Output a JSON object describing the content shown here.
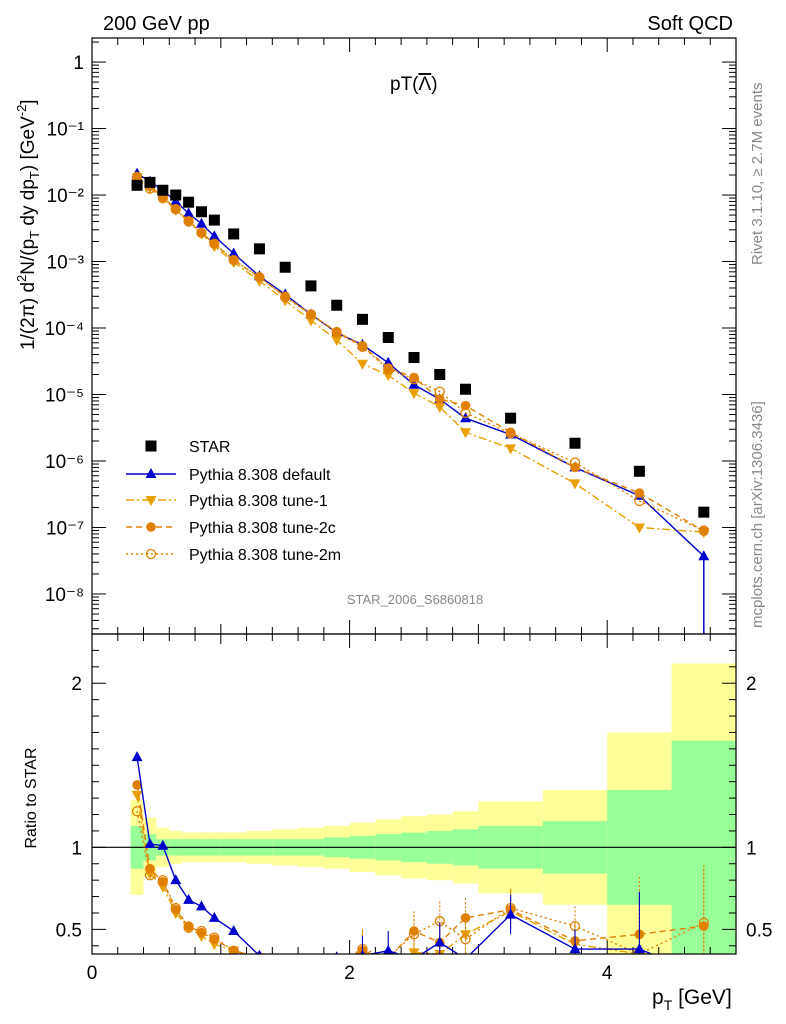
{
  "header": {
    "left": "200 GeV pp",
    "right": "Soft QCD"
  },
  "side_text": {
    "rivet": "Rivet 3.1.10, ≥ 2.7M events",
    "mcplots": "mcplots.cern.ch [arXiv:1306.3436]"
  },
  "watermark": "STAR_2006_S6860818",
  "colors": {
    "star": "#000000",
    "default": "#0000cc",
    "orange": "#e8a000",
    "orange_dark": "#e08000",
    "band_inner": "#99ff99",
    "band_outer": "#ffff99"
  },
  "chart_data": [
    {
      "type": "scatter",
      "title": "pT(Λ̅)",
      "xlabel": "p_T [GeV]",
      "ylabel": "1/(2π) d²N/(p_T dy dp_T) [GeV⁻²]",
      "yscale": "log",
      "xlim": [
        0,
        5
      ],
      "ylim": [
        2.5e-09,
        2.3
      ],
      "x_ticks": [
        "0",
        "2",
        "4"
      ],
      "y_ticks": [
        "1",
        "10⁻¹",
        "10⁻²",
        "10⁻³",
        "10⁻⁴",
        "10⁻⁵",
        "10⁻⁶",
        "10⁻⁷",
        "10⁻⁸"
      ],
      "legend_position": "bottom-left",
      "x": [
        0.35,
        0.45,
        0.55,
        0.65,
        0.75,
        0.85,
        0.95,
        1.1,
        1.3,
        1.5,
        1.7,
        1.9,
        2.1,
        2.3,
        2.5,
        2.7,
        2.9,
        3.25,
        3.75,
        4.25,
        4.75
      ],
      "series": [
        {
          "name": "STAR",
          "marker": "square",
          "values": [
            0.014,
            0.0155,
            0.0118,
            0.01,
            0.0078,
            0.0056,
            0.0042,
            0.0026,
            0.00155,
            0.00082,
            0.00043,
            0.00022,
            0.000135,
            7.2e-05,
            3.6e-05,
            2e-05,
            1.2e-05,
            4.4e-06,
            1.85e-06,
            7e-07,
            1.7e-07
          ]
        },
        {
          "name": "Pythia 8.308 default",
          "marker": "triangle-up",
          "values": [
            0.021,
            0.016,
            0.0118,
            0.008,
            0.0053,
            0.0037,
            0.0024,
            0.00132,
            0.0006,
            0.00032,
            0.00016,
            8.5e-05,
            5.6e-05,
            3e-05,
            1.4e-05,
            8.5e-06,
            4.4e-06,
            2.5e-06,
            8e-07,
            3e-07,
            3.7e-08
          ]
        },
        {
          "name": "Pythia 8.308 tune-1",
          "marker": "triangle-down",
          "values": [
            0.0185,
            0.013,
            0.009,
            0.006,
            0.004,
            0.0026,
            0.0017,
            0.00098,
            0.00051,
            0.00026,
            0.00013,
            6.6e-05,
            2.9e-05,
            1.95e-05,
            1.05e-05,
            6.5e-06,
            2.7e-06,
            1.55e-06,
            4.6e-07,
            1e-07,
            8.5e-08
          ]
        },
        {
          "name": "Pythia 8.308 tune-2c",
          "marker": "circle",
          "values": [
            0.019,
            0.0135,
            0.0093,
            0.0062,
            0.0041,
            0.0027,
            0.00185,
            0.00105,
            0.00058,
            0.0003,
            0.00016,
            8.8e-05,
            5.4e-05,
            2.5e-05,
            1.8e-05,
            8.5e-06,
            6.8e-06,
            2.7e-06,
            8e-07,
            3.3e-07,
            8.8e-08
          ]
        },
        {
          "name": "Pythia 8.308 tune-2m",
          "marker": "open-circle",
          "values": [
            0.017,
            0.0125,
            0.009,
            0.0061,
            0.004,
            0.0027,
            0.00185,
            0.00105,
            0.00058,
            0.00029,
            0.00016,
            8.5e-05,
            5.2e-05,
            2.4e-05,
            1.7e-05,
            1.1e-05,
            5.3e-06,
            2.6e-06,
            9.5e-07,
            2.5e-07,
            9e-08
          ]
        }
      ]
    },
    {
      "type": "line",
      "ylabel": "Ratio to STAR",
      "xlabel": "p_T [GeV]",
      "xlim": [
        0,
        5
      ],
      "ylim": [
        0.35,
        2.3
      ],
      "x_ticks": [
        "0",
        "2",
        "4"
      ],
      "y_ticks": [
        "0.5",
        "1",
        "2"
      ],
      "bands": {
        "x_edges": [
          0.3,
          0.4,
          0.5,
          0.6,
          0.7,
          0.8,
          0.9,
          1.0,
          1.2,
          1.4,
          1.6,
          1.8,
          2.0,
          2.2,
          2.4,
          2.6,
          2.8,
          3.0,
          3.5,
          4.0,
          4.5,
          5.0
        ],
        "inner": [
          0.13,
          0.08,
          0.05,
          0.05,
          0.05,
          0.05,
          0.05,
          0.05,
          0.05,
          0.05,
          0.05,
          0.06,
          0.07,
          0.08,
          0.09,
          0.1,
          0.11,
          0.13,
          0.16,
          0.35,
          0.65
        ],
        "outer": [
          0.29,
          0.18,
          0.12,
          0.1,
          0.09,
          0.09,
          0.09,
          0.09,
          0.1,
          0.11,
          0.12,
          0.13,
          0.15,
          0.17,
          0.19,
          0.2,
          0.22,
          0.28,
          0.35,
          0.7,
          1.12
        ]
      },
      "x": [
        0.35,
        0.45,
        0.55,
        0.65,
        0.75,
        0.85,
        0.95,
        1.1,
        1.3,
        1.5,
        1.7,
        1.9,
        2.1,
        2.3,
        2.5,
        2.7,
        2.9,
        3.25,
        3.75,
        4.25,
        4.75
      ],
      "series": [
        {
          "name": "Pythia 8.308 default",
          "values": [
            1.55,
            1.02,
            1.01,
            0.8,
            0.68,
            0.64,
            0.57,
            0.49,
            0.34,
            0.3,
            0.31,
            0.33,
            0.34,
            0.37,
            0.32,
            0.42,
            0.32,
            0.59,
            0.38,
            0.38,
            0.22
          ]
        },
        {
          "name": "Pythia 8.308 tune-1",
          "values": [
            1.32,
            0.84,
            0.76,
            0.6,
            0.51,
            0.46,
            0.41,
            0.37,
            0.33,
            0.3,
            0.3,
            0.3,
            0.31,
            0.3,
            0.36,
            0.35,
            0.47,
            0.61,
            0.41,
            0.35,
            0.3
          ]
        },
        {
          "name": "Pythia 8.308 tune-2c",
          "values": [
            1.38,
            0.87,
            0.79,
            0.62,
            0.52,
            0.48,
            0.44,
            0.37,
            0.33,
            0.3,
            0.3,
            0.3,
            0.37,
            0.32,
            0.49,
            0.42,
            0.57,
            0.62,
            0.43,
            0.47,
            0.52
          ]
        },
        {
          "name": "Pythia 8.308 tune-2m",
          "values": [
            1.22,
            0.83,
            0.8,
            0.63,
            0.51,
            0.49,
            0.45,
            0.37,
            0.33,
            0.3,
            0.3,
            0.3,
            0.38,
            0.33,
            0.47,
            0.55,
            0.44,
            0.63,
            0.52,
            0.35,
            0.54
          ]
        }
      ]
    }
  ]
}
